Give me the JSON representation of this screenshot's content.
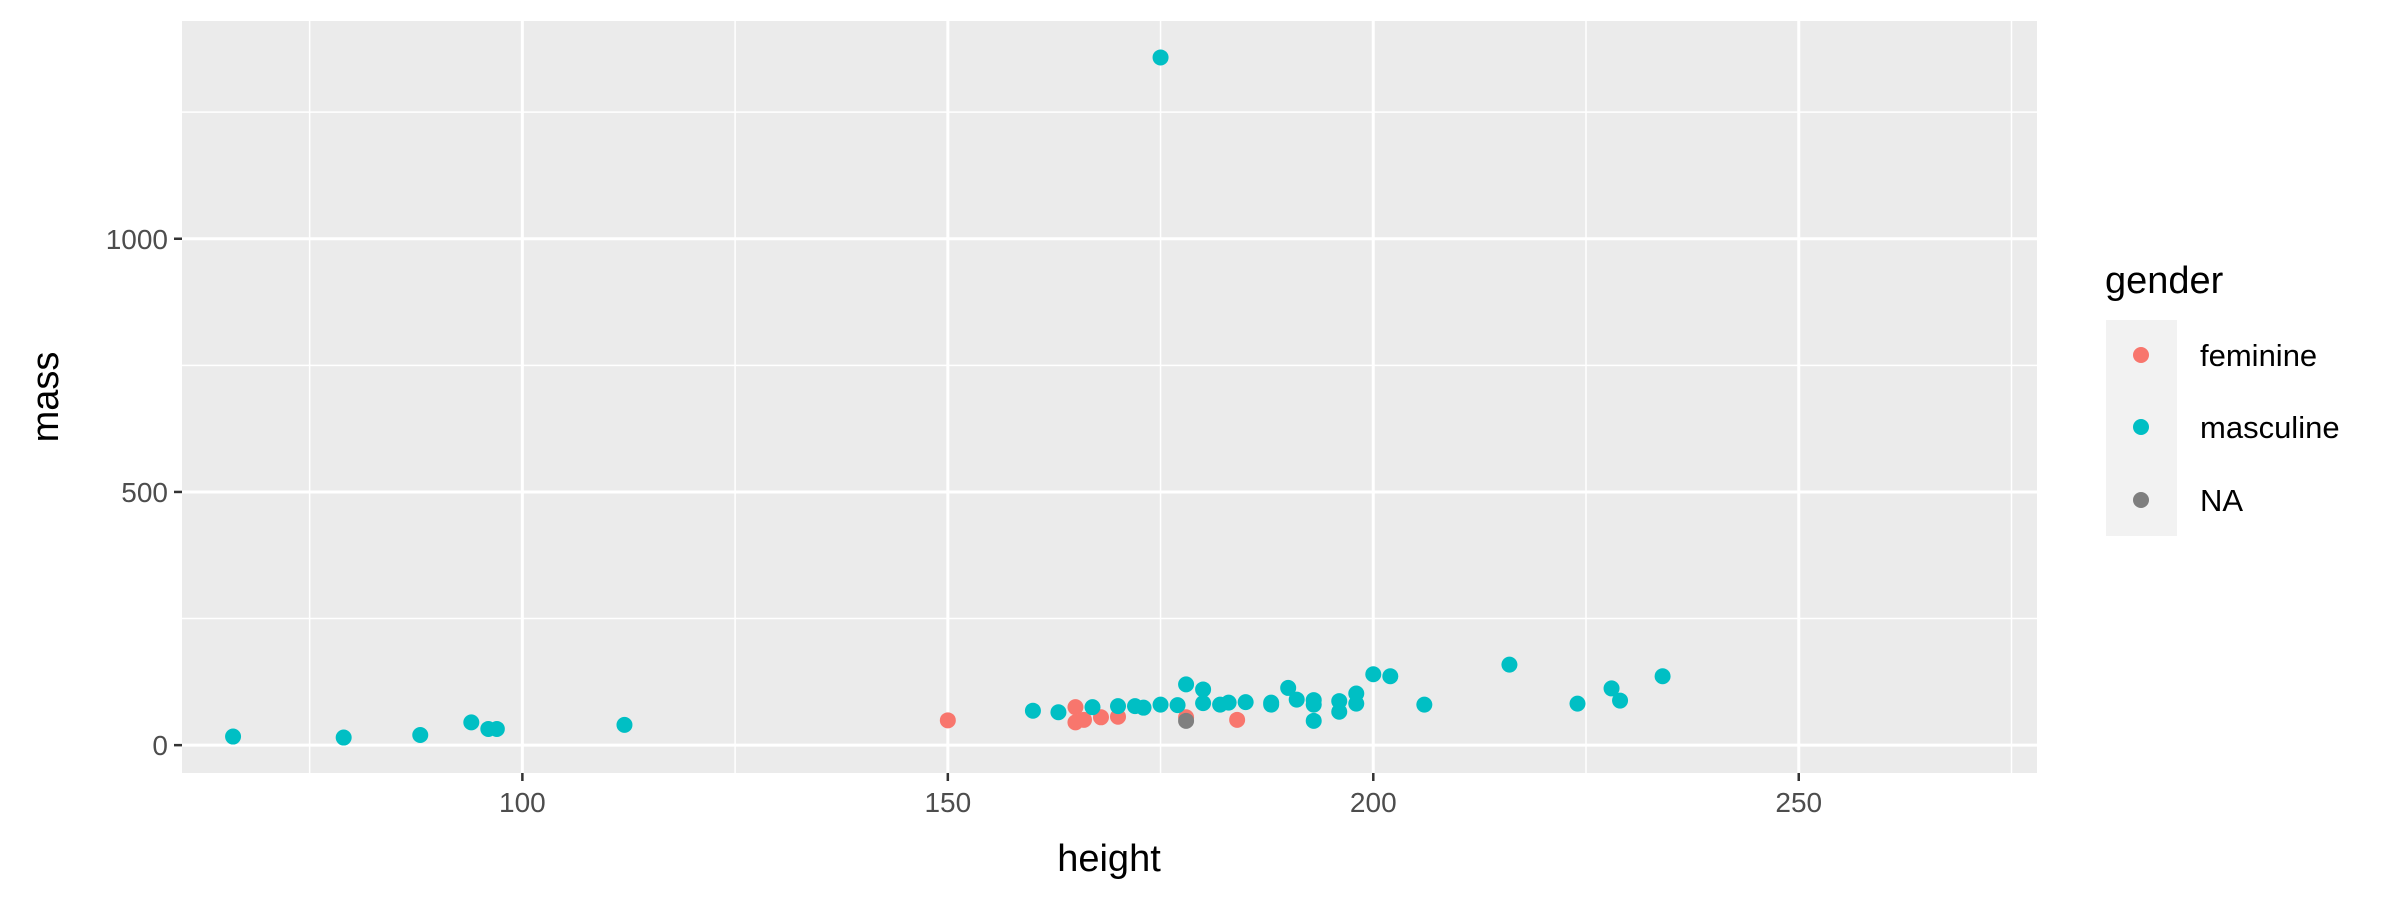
{
  "chart_data": {
    "type": "scatter",
    "xlabel": "height",
    "ylabel": "mass",
    "xlim": [
      60,
      278
    ],
    "ylim": [
      -55,
      1430
    ],
    "x_ticks": [
      100,
      150,
      200,
      250
    ],
    "y_ticks": [
      0,
      500,
      1000
    ],
    "x_tick_labels": [
      "100",
      "150",
      "200",
      "250"
    ],
    "y_tick_labels": [
      "0",
      "500",
      "1000"
    ],
    "grid": true,
    "background": "#ebebeb",
    "legend": {
      "title": "gender",
      "position": "right",
      "entries": [
        {
          "name": "feminine",
          "color": "#f8766d"
        },
        {
          "name": "masculine",
          "color": "#00bfc4"
        },
        {
          "name": "NA",
          "color": "#7f7f7f"
        }
      ]
    },
    "series": [
      {
        "name": "feminine",
        "color": "#f8766d",
        "points": [
          [
            150,
            49
          ],
          [
            165,
            75
          ],
          [
            165,
            45
          ],
          [
            166,
            50
          ],
          [
            168,
            55
          ],
          [
            170,
            56.2
          ],
          [
            178,
            55
          ],
          [
            184,
            50
          ]
        ]
      },
      {
        "name": "masculine",
        "color": "#00bfc4",
        "points": [
          [
            66,
            17
          ],
          [
            79,
            15
          ],
          [
            88,
            20
          ],
          [
            94,
            45
          ],
          [
            96,
            32
          ],
          [
            97,
            32
          ],
          [
            112,
            40
          ],
          [
            160,
            68
          ],
          [
            163,
            65
          ],
          [
            167,
            75
          ],
          [
            170,
            77
          ],
          [
            172,
            77
          ],
          [
            173,
            74
          ],
          [
            175,
            1358
          ],
          [
            175,
            80
          ],
          [
            177,
            79
          ],
          [
            178,
            120
          ],
          [
            180,
            110
          ],
          [
            180,
            83
          ],
          [
            182,
            80
          ],
          [
            183,
            84
          ],
          [
            185,
            85
          ],
          [
            188,
            84
          ],
          [
            188,
            80
          ],
          [
            190,
            113
          ],
          [
            191,
            90
          ],
          [
            193,
            89
          ],
          [
            193,
            80
          ],
          [
            193,
            48
          ],
          [
            196,
            87
          ],
          [
            196,
            66
          ],
          [
            198,
            102
          ],
          [
            198,
            82
          ],
          [
            200,
            140
          ],
          [
            202,
            136
          ],
          [
            206,
            80
          ],
          [
            216,
            159
          ],
          [
            224,
            82
          ],
          [
            228,
            112
          ],
          [
            229,
            88
          ],
          [
            234,
            136
          ]
        ]
      },
      {
        "name": "NA",
        "color": "#7f7f7f",
        "points": [
          [
            178,
            48
          ]
        ]
      }
    ]
  }
}
